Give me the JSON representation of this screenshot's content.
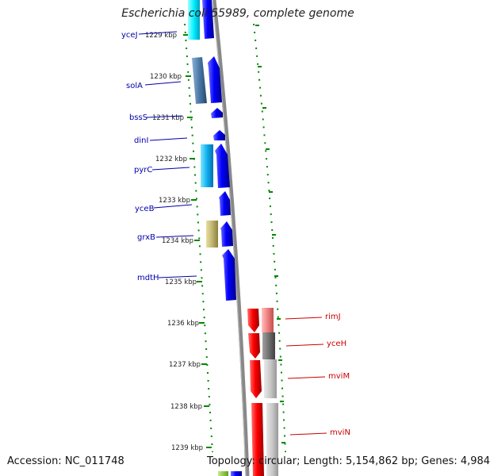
{
  "title": "Escherichia coli 55989, complete genome",
  "footer": {
    "accession": "Accession: NC_011748",
    "summary": "Topology: circular; Length: 5,154,862 bp; Genes: 4,984"
  },
  "ticks": [
    "1229 kbp",
    "1230 kbp",
    "1231 kbp",
    "1232 kbp",
    "1233 kbp",
    "1234 kbp",
    "1235 kbp",
    "1236 kbp",
    "1237 kbp",
    "1238 kbp",
    "1239 kbp"
  ],
  "genes_left": [
    "yceJ",
    "solA",
    "bssS",
    "dinI",
    "pyrC",
    "yceB",
    "grxB",
    "mdtH"
  ],
  "genes_right": [
    "rimJ",
    "yceH",
    "mviM",
    "mviN"
  ],
  "colors": {
    "forward_gene": "#0000ff",
    "reverse_gene": "#ff0000",
    "left_label": "#0000aa",
    "right_label": "#cc0000",
    "tick_mark": "#008800",
    "backbone": "#888888"
  }
}
